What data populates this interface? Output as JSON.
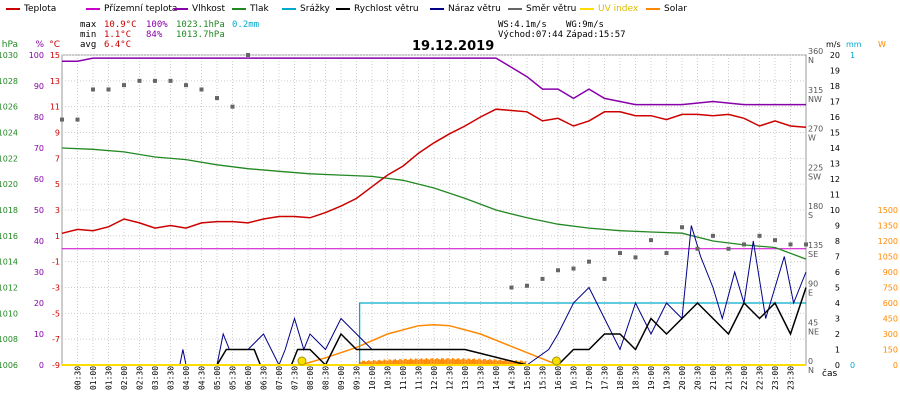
{
  "legend": [
    {
      "label": "Teplota",
      "color": "#cc0000"
    },
    {
      "label": "Přízemní teplota",
      "color": "#cc00cc"
    },
    {
      "label": "Vlhkost",
      "color": "#8800aa"
    },
    {
      "label": "Tlak",
      "color": "#228822"
    },
    {
      "label": "Srážky",
      "color": "#00aacc"
    },
    {
      "label": "Rychlost větru",
      "color": "#000000"
    },
    {
      "label": "Náraz větru",
      "color": "#000088"
    },
    {
      "label": "Směr větru",
      "color": "#666666"
    },
    {
      "label": "UV index",
      "color": "#ffdd00"
    },
    {
      "label": "Solar",
      "color": "#ff8800"
    }
  ],
  "stats": {
    "max_label": "max",
    "max_temp": "10.9°C",
    "max_hum": "100%",
    "max_press": "1023.1hPa",
    "max_rain": "0.2mm",
    "min_label": "min",
    "min_temp": "1.1°C",
    "min_hum": "84%",
    "min_press": "1013.7hPa",
    "avg_label": "avg",
    "avg_temp": "6.4°C"
  },
  "date": "19.12.2019",
  "wind_info": {
    "ws": "WS:4.1m/s",
    "wg": "WG:9m/s",
    "sunrise": "Východ:07:44",
    "sunset": "Západ:15:57"
  },
  "colors": {
    "temperature": "#cc0000",
    "ground": "#cc00cc",
    "humidity": "#8800aa",
    "pressure": "#228822",
    "rain": "#00aacc",
    "wind": "#000000",
    "gust": "#000088",
    "direction": "#666666",
    "uv": "#ffdd00",
    "solar": "#ff8800",
    "grid": "#cccccc"
  },
  "chart_data": {
    "type": "line",
    "x_unit": "čas",
    "x_ticks": [
      "00:30",
      "01:00",
      "01:30",
      "02:00",
      "02:30",
      "03:00",
      "03:30",
      "04:00",
      "04:30",
      "05:00",
      "05:30",
      "06:00",
      "06:30",
      "07:00",
      "07:30",
      "08:00",
      "08:30",
      "09:00",
      "09:30",
      "10:00",
      "10:30",
      "11:00",
      "11:30",
      "12:00",
      "12:30",
      "13:00",
      "13:30",
      "14:00",
      "14:30",
      "15:00",
      "15:30",
      "16:00",
      "16:30",
      "17:00",
      "17:30",
      "18:00",
      "18:30",
      "19:00",
      "19:30",
      "20:00",
      "20:30",
      "21:00",
      "21:30",
      "22:00",
      "22:30",
      "23:00",
      "23:30"
    ],
    "axes_left": [
      {
        "unit": "hPa",
        "color": "#228822",
        "ticks": [
          "1030",
          "1028",
          "1026",
          "1024",
          "1022",
          "1020",
          "1018",
          "1016",
          "1014",
          "1012",
          "1010",
          "1008",
          "1006"
        ]
      },
      {
        "unit": "%",
        "color": "#8800aa",
        "ticks": [
          "100",
          "90",
          "80",
          "70",
          "60",
          "50",
          "40",
          "30",
          "20",
          "10",
          "0"
        ]
      },
      {
        "unit": "°C",
        "color": "#cc0000",
        "ticks": [
          "15",
          "13",
          "11",
          "9",
          "7",
          "5",
          "3",
          "1",
          "-1",
          "-3",
          "-5",
          "-7",
          "-9"
        ]
      }
    ],
    "axes_right": [
      {
        "unit": "°",
        "color": "#555555",
        "ticks": [
          "360",
          "315",
          "270",
          "225",
          "180",
          "135",
          "90",
          "45",
          "0"
        ],
        "dirs": [
          "N",
          "NW",
          "W",
          "SW",
          "S",
          "SE",
          "E",
          "NE",
          "N"
        ]
      },
      {
        "unit": "m/s",
        "color": "#000000",
        "ticks": [
          "20",
          "19",
          "18",
          "17",
          "16",
          "15",
          "14",
          "13",
          "12",
          "11",
          "10",
          "9",
          "8",
          "7",
          "6",
          "5",
          "4",
          "3",
          "2",
          "1",
          "0"
        ]
      },
      {
        "unit": "mm",
        "color": "#00aacc",
        "ticks": [
          "1",
          "0"
        ]
      },
      {
        "unit": "W",
        "color": "#ff8800",
        "ticks": [
          "1500",
          "1350",
          "1200",
          "1050",
          "900",
          "750",
          "600",
          "450",
          "300",
          "150",
          "0"
        ]
      }
    ],
    "temp_range": [
      -9,
      15
    ],
    "humidity_range": [
      0,
      100
    ],
    "pressure_range": [
      1006,
      1030
    ],
    "wind_range": [
      0,
      20
    ],
    "direction_range": [
      0,
      360
    ],
    "solar_range": [
      0,
      1500
    ],
    "rain_range": [
      0,
      1
    ],
    "series": [
      {
        "name": "Teplota",
        "key": "temperature",
        "x": [
          0,
          0.5,
          1,
          1.5,
          2,
          2.5,
          3,
          3.5,
          4,
          4.5,
          5,
          5.5,
          6,
          6.5,
          7,
          7.5,
          8,
          8.5,
          9,
          9.5,
          10,
          10.5,
          11,
          11.5,
          12,
          12.5,
          13,
          13.5,
          14,
          14.5,
          15,
          15.5,
          16,
          16.5,
          17,
          17.5,
          18,
          18.5,
          19,
          19.5,
          20,
          20.5,
          21,
          21.5,
          22,
          22.5,
          23,
          23.5,
          24
        ],
        "values": [
          1.2,
          1.5,
          1.4,
          1.7,
          2.3,
          2.0,
          1.6,
          1.8,
          1.6,
          2.0,
          2.1,
          2.1,
          2.0,
          2.3,
          2.5,
          2.5,
          2.4,
          2.8,
          3.3,
          3.9,
          4.8,
          5.7,
          6.4,
          7.4,
          8.2,
          8.9,
          9.5,
          10.2,
          10.8,
          10.7,
          10.6,
          9.9,
          10.1,
          9.5,
          9.9,
          10.6,
          10.6,
          10.3,
          10.3,
          10.0,
          10.4,
          10.4,
          10.3,
          10.4,
          10.1,
          9.5,
          9.9,
          9.5,
          9.4
        ]
      },
      {
        "name": "Přízemní teplota",
        "key": "ground",
        "x": [
          0,
          24
        ],
        "values": [
          0.0,
          0.0
        ]
      },
      {
        "name": "Vlhkost",
        "key": "humidity",
        "x": [
          0,
          0.5,
          1,
          2,
          4,
          6,
          8,
          10,
          12,
          13,
          14,
          14.5,
          15,
          15.5,
          16,
          16.5,
          17,
          17.5,
          18,
          18.5,
          19,
          20,
          21,
          22,
          23,
          24
        ],
        "values": [
          98,
          98,
          99,
          99,
          99,
          99,
          99,
          99,
          99,
          99,
          99,
          96,
          93,
          89,
          89,
          86,
          89,
          86,
          85,
          84,
          84,
          84,
          85,
          84,
          84,
          84
        ],
        "note": "humidity"
      },
      {
        "name": "Tlak",
        "key": "pressure",
        "x": [
          0,
          1,
          2,
          3,
          4,
          5,
          6,
          7,
          8,
          9,
          10,
          11,
          12,
          13,
          14,
          15,
          16,
          17,
          18,
          19,
          20,
          21,
          22,
          23,
          24
        ],
        "values": [
          1022.8,
          1022.7,
          1022.5,
          1022.1,
          1021.9,
          1021.5,
          1021.2,
          1021.0,
          1020.8,
          1020.7,
          1020.6,
          1020.3,
          1019.7,
          1018.9,
          1018.0,
          1017.4,
          1016.9,
          1016.6,
          1016.4,
          1016.3,
          1016.2,
          1015.6,
          1015.3,
          1015.1,
          1014.2
        ]
      },
      {
        "name": "Srážky",
        "key": "rain",
        "x": [
          0,
          9.6,
          9.6,
          24
        ],
        "values": [
          0,
          0,
          0.2,
          0.2
        ]
      },
      {
        "name": "Rychlost větru",
        "key": "wind",
        "x": [
          0,
          5.0,
          5.3,
          6.2,
          6.4,
          7.4,
          7.6,
          8.0,
          8.5,
          9.0,
          9.5,
          10.0,
          11.5,
          12.0,
          13.0,
          15.0,
          16.0,
          16.5,
          17.0,
          17.5,
          18.0,
          18.5,
          19.0,
          19.5,
          20.0,
          20.5,
          21.0,
          21.5,
          22.0,
          22.5,
          23.0,
          23.5,
          24.0
        ],
        "values": [
          0,
          0,
          1,
          1,
          0,
          0,
          1,
          1,
          0,
          2,
          1,
          1,
          1,
          1,
          1,
          0,
          0,
          1,
          1,
          2,
          2,
          1,
          3,
          2,
          3,
          4,
          3,
          2,
          4,
          3,
          4,
          2,
          5
        ]
      },
      {
        "name": "Náraz větru",
        "key": "gust",
        "x": [
          0,
          3.8,
          3.9,
          4.0,
          5.0,
          5.2,
          5.4,
          6.0,
          6.5,
          7.0,
          7.2,
          7.5,
          7.8,
          8.0,
          8.5,
          9.0,
          9.5,
          10.0,
          11.0,
          12.0,
          13.0,
          15.0,
          15.7,
          16.0,
          16.5,
          17.0,
          17.5,
          18.0,
          18.5,
          19.0,
          19.5,
          20.0,
          20.3,
          20.6,
          21.0,
          21.3,
          21.7,
          22.0,
          22.3,
          22.7,
          23.0,
          23.3,
          23.6,
          24.0
        ],
        "values": [
          0,
          0,
          1,
          0,
          0,
          2,
          1,
          1,
          2,
          0,
          1,
          3,
          1,
          2,
          1,
          3,
          2,
          1,
          1,
          1,
          1,
          0,
          1,
          2,
          4,
          5,
          3,
          1,
          4,
          2,
          4,
          3,
          9,
          7,
          5,
          3,
          6,
          4,
          8,
          3,
          5,
          7,
          4,
          6
        ]
      },
      {
        "name": "Směr větru",
        "key": "direction",
        "x": [
          0,
          0.5,
          1.0,
          1.5,
          2.0,
          2.5,
          3.0,
          3.5,
          4.0,
          4.5,
          5.0,
          5.5,
          6.0,
          14.5,
          15.0,
          15.5,
          16.0,
          16.5,
          17.0,
          17.5,
          18.0,
          18.5,
          19.0,
          19.5,
          20.0,
          20.5,
          21.0,
          21.5,
          22.0,
          22.5,
          23.0,
          23.5,
          24.0
        ],
        "values": [
          285,
          285,
          320,
          320,
          325,
          330,
          330,
          330,
          325,
          320,
          310,
          300,
          360,
          90,
          92,
          100,
          110,
          112,
          120,
          100,
          130,
          125,
          145,
          130,
          160,
          135,
          150,
          135,
          140,
          150,
          145,
          140,
          140
        ]
      },
      {
        "name": "UV index",
        "key": "uv",
        "x": [
          0,
          24
        ],
        "values": [
          0,
          0
        ]
      },
      {
        "name": "Solar",
        "key": "solar",
        "x": [
          7.7,
          8.5,
          9.5,
          10.5,
          11.5,
          12.0,
          12.5,
          13.5,
          14.5,
          15.5,
          16.0
        ],
        "values": [
          0,
          70,
          170,
          300,
          380,
          390,
          380,
          300,
          180,
          60,
          0
        ]
      }
    ]
  }
}
